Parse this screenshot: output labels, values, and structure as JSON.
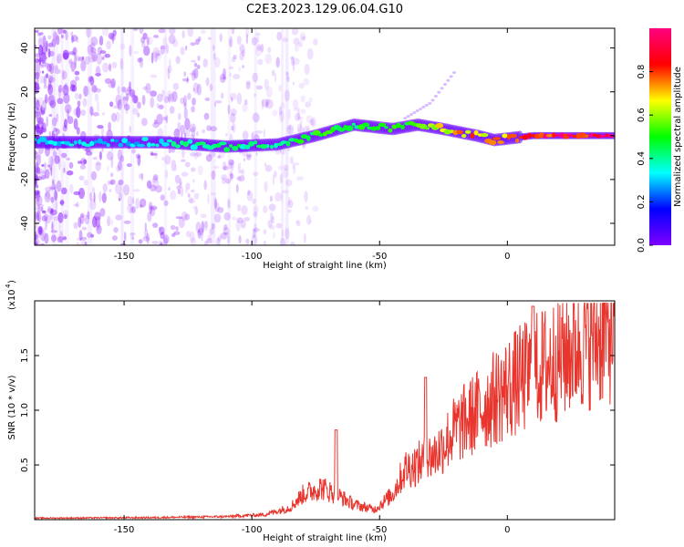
{
  "figure_title": "C2E3.2023.129.06.04.G10",
  "chart_data": [
    {
      "type": "heatmap",
      "xlabel": "Height of straight line (km)",
      "ylabel": "Frequency (Hz)",
      "xlim": [
        -185,
        42
      ],
      "ylim": [
        -50,
        49
      ],
      "xticks": [
        -150,
        -100,
        -50,
        0
      ],
      "xtick_labels": [
        "-150",
        "-100",
        "-50",
        "0"
      ],
      "yticks": [
        -40,
        -20,
        0,
        20,
        40
      ],
      "ytick_labels": [
        "-40",
        "-20",
        "0",
        "20",
        "40"
      ],
      "colorbar": {
        "label": "Normalized spectral amplitude",
        "range": [
          0,
          1
        ],
        "ticks": [
          0.0,
          0.2,
          0.4,
          0.6,
          0.8
        ],
        "tick_labels": [
          "0.0",
          "0.2",
          "0.4",
          "0.6",
          "0.8"
        ],
        "colormap": [
          "#7f00ff",
          "#0000ff",
          "#00ffff",
          "#00ff00",
          "#ffff00",
          "#ff0000",
          "#ff0080"
        ]
      },
      "ridge": [
        {
          "x": -185,
          "f": -3,
          "amp": 0.35
        },
        {
          "x": -150,
          "f": -3,
          "amp": 0.3
        },
        {
          "x": -135,
          "f": -3,
          "amp": 0.38
        },
        {
          "x": -110,
          "f": -5,
          "amp": 0.45
        },
        {
          "x": -90,
          "f": -4,
          "amp": 0.45
        },
        {
          "x": -75,
          "f": 0,
          "amp": 0.5
        },
        {
          "x": -60,
          "f": 5,
          "amp": 0.48
        },
        {
          "x": -45,
          "f": 3,
          "amp": 0.5
        },
        {
          "x": -35,
          "f": 5,
          "amp": 0.55
        },
        {
          "x": -25,
          "f": 3,
          "amp": 0.7
        },
        {
          "x": -12,
          "f": 0,
          "amp": 0.75
        },
        {
          "x": -5,
          "f": -2,
          "amp": 0.75
        },
        {
          "x": 10,
          "f": 0,
          "amp": 0.92
        },
        {
          "x": 42,
          "f": 0,
          "amp": 0.95
        }
      ],
      "branch": [
        {
          "x": -40,
          "f": 8
        },
        {
          "x": -30,
          "f": 15
        },
        {
          "x": -20,
          "f": 30
        }
      ]
    },
    {
      "type": "line",
      "xlabel": "Height of straight line (km)",
      "ylabel": "SNR (10 * v/v)",
      "multiplier_label": "(x10",
      "multiplier_exp": "4",
      "xlim": [
        -185,
        42
      ],
      "ylim": [
        0,
        2.0
      ],
      "xticks": [
        -150,
        -100,
        -50,
        0
      ],
      "xtick_labels": [
        "-150",
        "-100",
        "-50",
        "0"
      ],
      "yticks": [
        0.5,
        1.0,
        1.5
      ],
      "ytick_labels": [
        "0.5",
        "1.0",
        "1.5"
      ],
      "color": "#e8352e",
      "envelope": [
        {
          "x": -185,
          "y": 0.015
        },
        {
          "x": -140,
          "y": 0.02
        },
        {
          "x": -110,
          "y": 0.03
        },
        {
          "x": -95,
          "y": 0.05
        },
        {
          "x": -85,
          "y": 0.12
        },
        {
          "x": -80,
          "y": 0.25
        },
        {
          "x": -73,
          "y": 0.32
        },
        {
          "x": -67,
          "y": 0.25
        },
        {
          "x": -60,
          "y": 0.15
        },
        {
          "x": -52,
          "y": 0.1
        },
        {
          "x": -45,
          "y": 0.25
        },
        {
          "x": -40,
          "y": 0.5
        },
        {
          "x": -35,
          "y": 0.55
        },
        {
          "x": -28,
          "y": 0.65
        },
        {
          "x": -20,
          "y": 0.9
        },
        {
          "x": -10,
          "y": 1.1
        },
        {
          "x": 0,
          "y": 1.3
        },
        {
          "x": 10,
          "y": 1.45
        },
        {
          "x": 20,
          "y": 1.6
        },
        {
          "x": 30,
          "y": 1.78
        },
        {
          "x": 42,
          "y": 1.9
        }
      ],
      "spikes": [
        {
          "x": -67,
          "y": 0.82
        },
        {
          "x": -32,
          "y": 1.3
        },
        {
          "x": 10,
          "y": 1.95
        }
      ]
    }
  ]
}
